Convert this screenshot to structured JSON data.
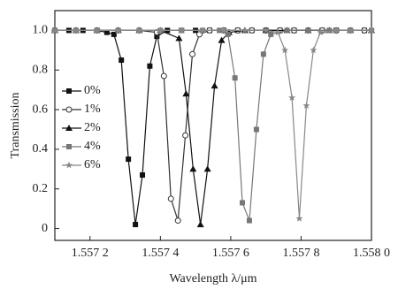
{
  "chart_data": {
    "type": "line",
    "x_label": "Wavelength λ/μm",
    "y_label": "Transmission",
    "xlim": [
      1.5571,
      1.558
    ],
    "ylim": [
      -0.06,
      1.1
    ],
    "xticks": [
      {
        "value": 1.5572,
        "label": "1.557 2"
      },
      {
        "value": 1.5574,
        "label": "1.557 4"
      },
      {
        "value": 1.5576,
        "label": "1.557 6"
      },
      {
        "value": 1.5578,
        "label": "1.557 8"
      },
      {
        "value": 1.558,
        "label": "1.558 0"
      }
    ],
    "yticks": [
      0,
      0.2,
      0.4,
      0.6,
      0.8,
      {
        "value": 1.0,
        "label": "1.0"
      }
    ],
    "legend_position": "left",
    "series": [
      {
        "name": "0%",
        "color": "#111111",
        "marker": "square",
        "x": [
          1.5571,
          1.55714,
          1.55718,
          1.55722,
          1.557248,
          1.557268,
          1.557289,
          1.557309,
          1.557329,
          1.557349,
          1.55737,
          1.55739,
          1.55742,
          1.55746,
          1.5575,
          1.55754,
          1.55758,
          1.55762,
          1.55766,
          1.5577,
          1.55774,
          1.55778,
          1.55782,
          1.55786,
          1.5579,
          1.55794,
          1.55798
        ],
        "values": [
          1,
          1,
          1,
          1,
          0.99,
          0.98,
          0.85,
          0.35,
          0.02,
          0.27,
          0.82,
          0.97,
          1,
          1,
          1,
          1,
          1,
          1,
          1,
          1,
          1,
          1,
          1,
          1,
          1,
          1,
          1
        ]
      },
      {
        "name": "1%",
        "color": "#333333",
        "marker": "circle-open",
        "x": [
          1.5571,
          1.55716,
          1.55722,
          1.55728,
          1.55734,
          1.55739,
          1.55741,
          1.55743,
          1.55745,
          1.557471,
          1.557491,
          1.557511,
          1.55754,
          1.55758,
          1.55762,
          1.55766,
          1.5577,
          1.55774,
          1.55778,
          1.55782,
          1.55786,
          1.5579,
          1.55794,
          1.55798
        ],
        "values": [
          1,
          1,
          1,
          1,
          1,
          0.99,
          0.77,
          0.15,
          0.04,
          0.47,
          0.88,
          0.98,
          1,
          1,
          1,
          1,
          1,
          1,
          1,
          1,
          1,
          1,
          1,
          1
        ]
      },
      {
        "name": "2%",
        "color": "#111111",
        "marker": "triangle",
        "x": [
          1.5571,
          1.55716,
          1.55722,
          1.55728,
          1.55734,
          1.5574,
          1.557453,
          1.557473,
          1.557493,
          1.557514,
          1.557534,
          1.557554,
          1.557574,
          1.557595,
          1.55764,
          1.5577,
          1.55776,
          1.55782,
          1.55788,
          1.55794,
          1.558
        ],
        "values": [
          1,
          1,
          1,
          1,
          1,
          1,
          0.96,
          0.68,
          0.3,
          0.02,
          0.3,
          0.72,
          0.95,
          0.99,
          1,
          1,
          1,
          1,
          1,
          1,
          1
        ]
      },
      {
        "name": "4%",
        "color": "#777777",
        "marker": "square",
        "x": [
          1.5571,
          1.55716,
          1.55722,
          1.55728,
          1.55734,
          1.5574,
          1.55746,
          1.55752,
          1.557568,
          1.557592,
          1.557612,
          1.557633,
          1.557653,
          1.557673,
          1.557693,
          1.557714,
          1.55776,
          1.55782,
          1.55788,
          1.55794,
          1.558
        ],
        "values": [
          1,
          1,
          1,
          1,
          1,
          1,
          1,
          1,
          1,
          0.98,
          0.76,
          0.13,
          0.04,
          0.5,
          0.88,
          0.98,
          1,
          1,
          1,
          1,
          1
        ]
      },
      {
        "name": "6%",
        "color": "#888888",
        "marker": "star",
        "x": [
          1.5571,
          1.55716,
          1.55722,
          1.55728,
          1.55734,
          1.5574,
          1.55746,
          1.55752,
          1.55758,
          1.55764,
          1.5577,
          1.557734,
          1.557754,
          1.557774,
          1.557795,
          1.557815,
          1.557835,
          1.557855,
          1.5579,
          1.55794,
          1.558
        ],
        "values": [
          1,
          1,
          1,
          1,
          1,
          1,
          1,
          1,
          1,
          1,
          1,
          0.99,
          0.9,
          0.66,
          0.05,
          0.62,
          0.9,
          0.99,
          1,
          1,
          1
        ]
      }
    ]
  }
}
